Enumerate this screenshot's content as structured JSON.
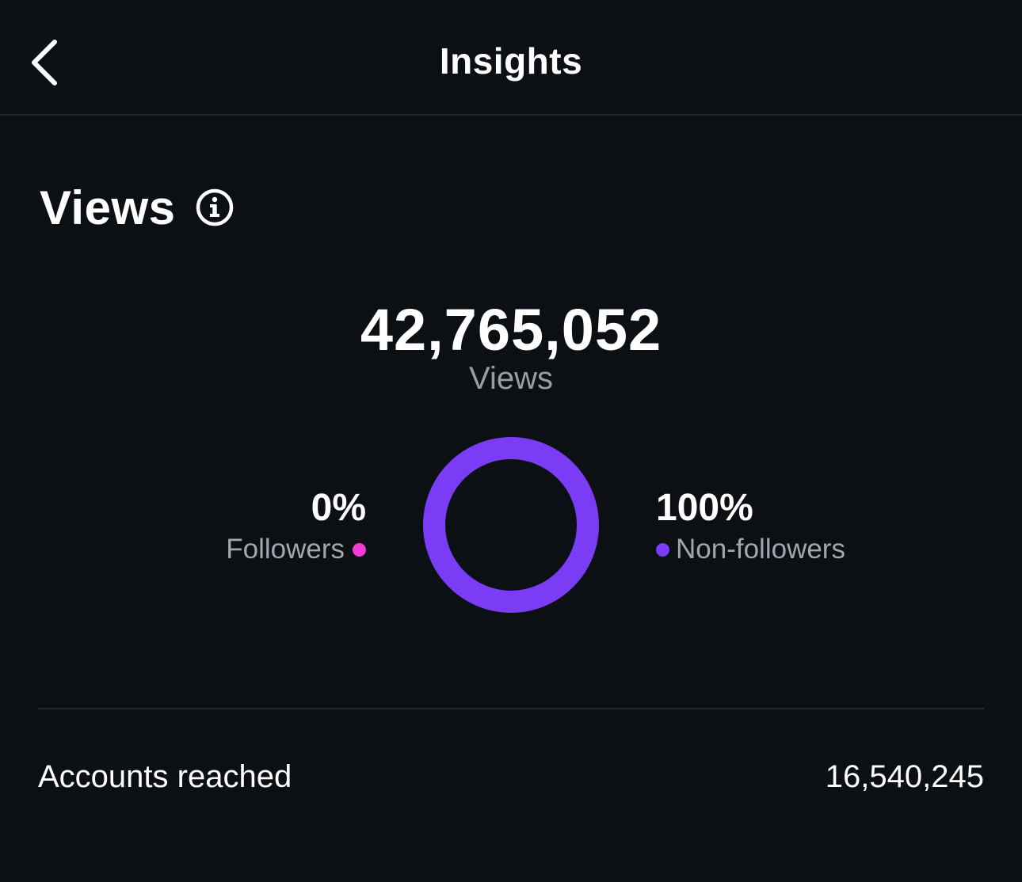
{
  "header": {
    "title": "Insights",
    "back_icon": "chevron-left-icon"
  },
  "views": {
    "section_title": "Views",
    "info_icon": "info-icon",
    "total_value": "42,765,052",
    "total_label": "Views"
  },
  "chart_data": {
    "type": "pie",
    "categories": [
      "Followers",
      "Non-followers"
    ],
    "values": [
      0,
      100
    ],
    "labels": [
      "0%",
      "100%"
    ],
    "colors": [
      "#f23bd6",
      "#7b3cf5"
    ]
  },
  "metrics": {
    "accounts_reached_label": "Accounts reached",
    "accounts_reached_value": "16,540,245"
  },
  "colors": {
    "background": "#0c0f14",
    "followers": "#f23bd6",
    "non_followers": "#7b3cf5"
  }
}
